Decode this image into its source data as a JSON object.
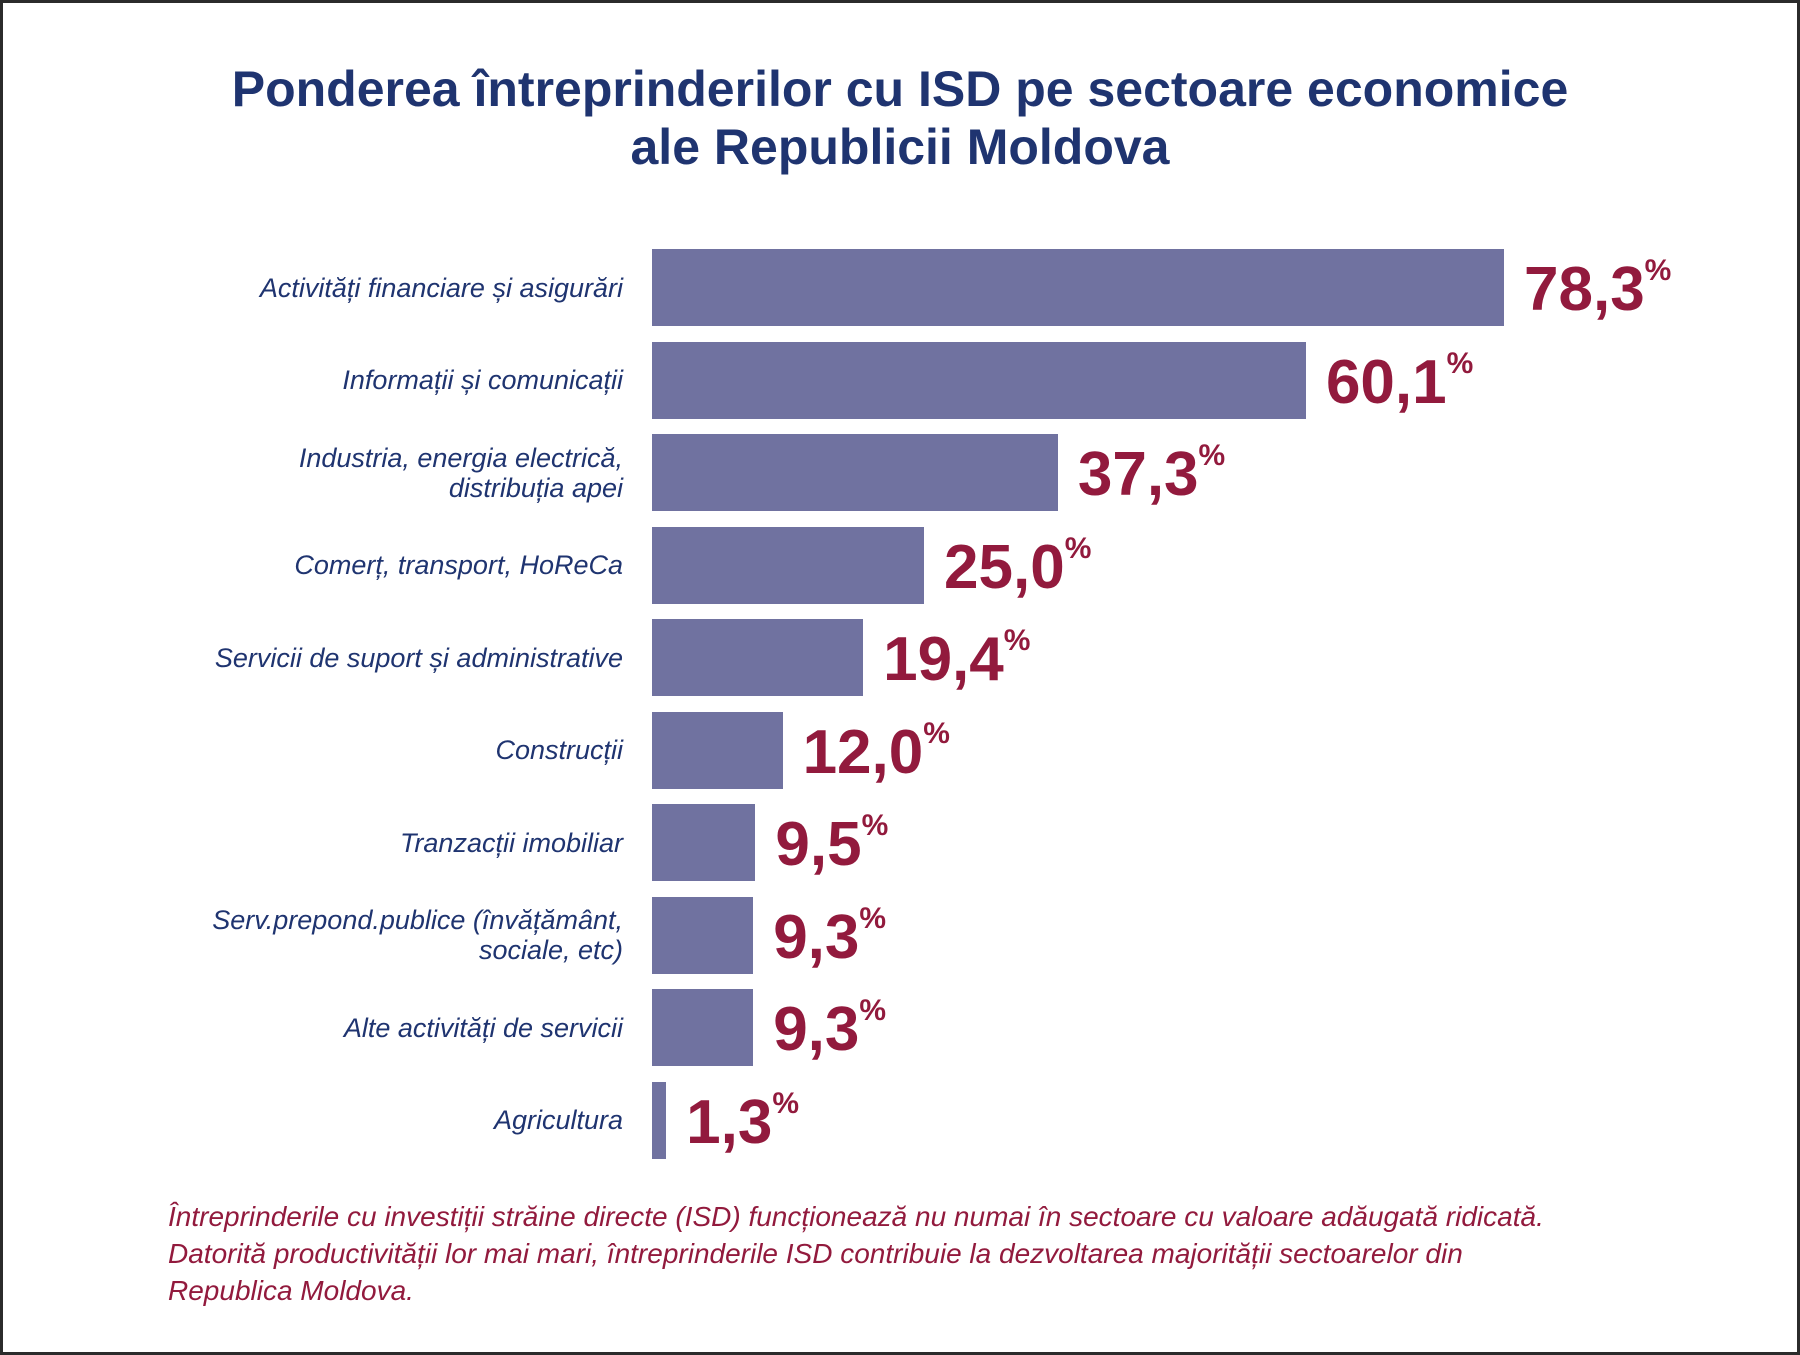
{
  "chart_data": {
    "type": "bar",
    "orientation": "horizontal",
    "title": "Ponderea întreprinderilor cu ISD pe sectoare economice ale Republicii Moldova",
    "title_lines": [
      "Ponderea întreprinderilor cu ISD pe sectoare economice",
      "ale Republicii Moldova"
    ],
    "categories": [
      [
        "Activități financiare și asigurări"
      ],
      [
        "Informații și comunicații"
      ],
      [
        "Industria, energia electrică,",
        "distribuția apei"
      ],
      [
        "Comerț, transport, HoReCa"
      ],
      [
        "Servicii de suport și administrative"
      ],
      [
        "Construcții"
      ],
      [
        "Tranzacții imobiliar"
      ],
      [
        "Serv.prepond.publice (învățământ,",
        "sociale, etc)"
      ],
      [
        "Alte activități de servicii"
      ],
      [
        "Agricultura"
      ]
    ],
    "values": [
      78.3,
      60.1,
      37.3,
      25.0,
      19.4,
      12.0,
      9.5,
      9.3,
      9.3,
      1.3
    ],
    "value_labels": [
      "78,3",
      "60,1",
      "37,3",
      "25,0",
      "19,4",
      "12,0",
      "9,5",
      "9,3",
      "9,3",
      "1,3"
    ],
    "unit": "%",
    "xlim": [
      0,
      78.3
    ],
    "grid": false,
    "colors": {
      "bar": "#7072a0",
      "value": "#921a3d",
      "text": "#1f3470"
    }
  },
  "footnote": "Întreprinderile cu investiții străine directe (ISD) funcționează nu numai în sectoare cu valoare adăugată ridicată. Datorită productivității lor mai mari, întreprinderile ISD contribuie la dezvoltarea majorității sectoarelor din Republica Moldova."
}
